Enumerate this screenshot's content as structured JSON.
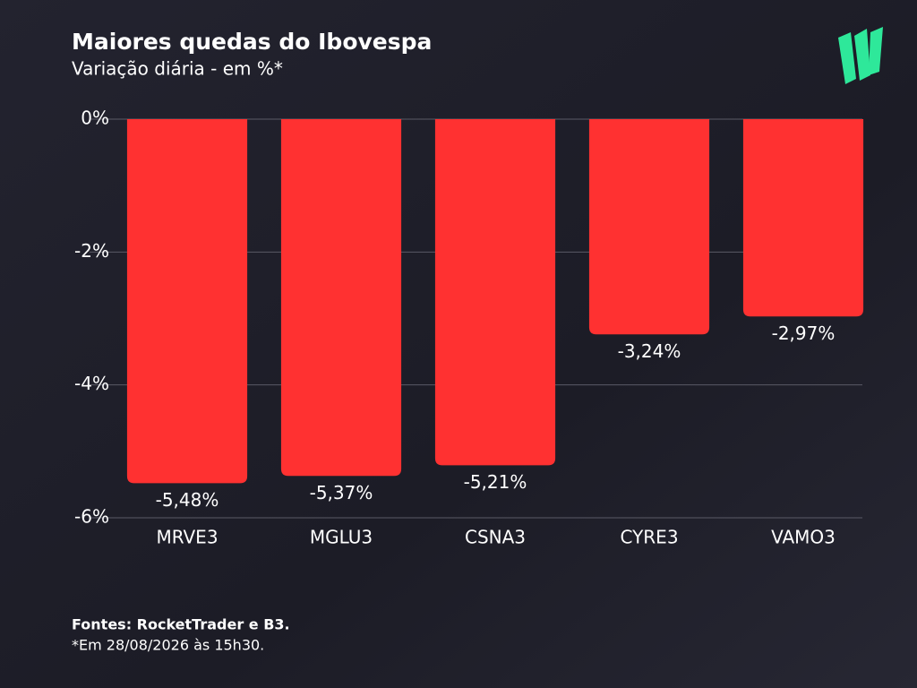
{
  "chart_data": {
    "type": "bar",
    "title": "Maiores quedas do Ibovespa",
    "subtitle": "Variação diária - em %*",
    "categories": [
      "MRVE3",
      "MGLU3",
      "CSNA3",
      "CYRE3",
      "VAMO3"
    ],
    "values": [
      -5.48,
      -5.37,
      -5.21,
      -3.24,
      -2.97
    ],
    "value_labels": [
      "-5,48%",
      "-5,37%",
      "-5,21%",
      "-3,24%",
      "-2,97%"
    ],
    "color": "#ff3131",
    "ylim": [
      -6,
      0
    ],
    "yticks": [
      {
        "value": 0,
        "label": "0%"
      },
      {
        "value": -2,
        "label": "-2%"
      },
      {
        "value": -4,
        "label": "-4%"
      },
      {
        "value": -6,
        "label": "-6%"
      }
    ],
    "grid": true,
    "source": "Fontes: RocketTrader e B3.",
    "note": "*Em 28/08/2026 às 15h30."
  }
}
